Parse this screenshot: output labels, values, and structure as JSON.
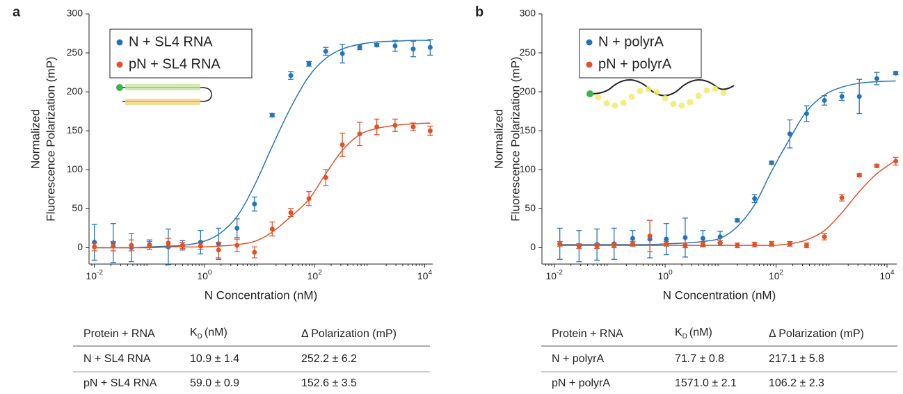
{
  "chart_data": [
    {
      "type": "scatter",
      "panel_label": "a",
      "xlabel": "N Concentration (nM)",
      "ylabel": [
        "Normalized",
        "Fluorescence Polarization (mP)"
      ],
      "xscale": "log",
      "xlim": [
        0.008,
        14000
      ],
      "ylim": [
        -21,
        300
      ],
      "xticks": [
        {
          "value": 0.01,
          "label": "10",
          "exponent": "-2"
        },
        {
          "value": 1,
          "label": "10",
          "exponent": "0"
        },
        {
          "value": 100,
          "label": "10",
          "exponent": "2"
        },
        {
          "value": 10000,
          "label": "10",
          "exponent": "4"
        }
      ],
      "yticks": [
        0,
        50,
        100,
        150,
        200,
        250,
        300
      ],
      "legend": "upper left",
      "x": [
        0.01,
        0.022,
        0.047,
        0.1,
        0.22,
        0.4,
        0.85,
        1.8,
        3.9,
        8.1,
        17,
        37,
        79,
        160,
        320,
        660,
        1350,
        2900,
        6200,
        12600
      ],
      "series": [
        {
          "name": "N + SL4 RNA",
          "color": "#2474b9",
          "values": [
            7,
            6,
            0,
            4,
            1,
            3,
            7,
            5,
            25,
            56,
            170,
            221,
            236,
            252,
            249,
            257,
            260,
            259,
            255,
            257
          ],
          "errors": [
            23,
            25,
            18,
            6,
            23,
            6,
            15,
            20,
            12,
            9,
            2,
            5,
            3,
            5,
            12,
            3,
            2,
            7,
            10,
            10
          ],
          "fit_values": [
            0,
            0,
            0,
            1,
            2,
            3,
            7,
            17,
            40,
            80,
            130,
            180,
            220,
            243,
            255,
            261,
            264,
            265,
            266,
            266
          ]
        },
        {
          "name": "pN + SL4 RNA",
          "color": "#e0522a",
          "values": [
            1,
            2,
            3,
            3,
            6,
            3,
            2,
            -3,
            3,
            -6,
            24,
            45,
            63,
            90,
            132,
            146,
            155,
            157,
            155,
            150
          ],
          "errors": [
            5,
            6,
            7,
            5,
            6,
            4,
            4,
            10,
            8,
            7,
            9,
            5,
            9,
            10,
            15,
            15,
            10,
            8,
            5,
            6
          ],
          "fit_values": [
            0,
            0,
            0,
            0,
            1,
            1,
            1,
            2,
            4,
            8,
            20,
            40,
            62,
            95,
            125,
            145,
            153,
            157,
            159,
            160
          ]
        }
      ],
      "table": {
        "header": [
          "Protein + RNA",
          {
            "symbol": "K",
            "subscript": "D",
            "unit": "(nM)"
          },
          "Δ Polarization (mP)"
        ],
        "rows": [
          [
            "N + SL4 RNA",
            "10.9 ± 1.4",
            "252.2 ± 6.2"
          ],
          [
            "pN + SL4 RNA",
            "59.0 ± 0.9",
            "152.6 ± 3.5"
          ]
        ]
      }
    },
    {
      "type": "scatter",
      "panel_label": "b",
      "xlabel": "N Concentration (nM)",
      "ylabel": [
        "Normalized",
        "Fluorescence Polarization (mP)"
      ],
      "xscale": "log",
      "xlim": [
        0.006,
        15000
      ],
      "ylim": [
        -21,
        300
      ],
      "xticks": [
        {
          "value": 0.01,
          "label": "10",
          "exponent": "-2"
        },
        {
          "value": 1,
          "label": "10",
          "exponent": "0"
        },
        {
          "value": 100,
          "label": "10",
          "exponent": "2"
        },
        {
          "value": 10000,
          "label": "10",
          "exponent": "4"
        }
      ],
      "yticks": [
        0,
        50,
        100,
        150,
        200,
        250,
        300
      ],
      "legend": "upper left",
      "x": [
        0.0126,
        0.028,
        0.059,
        0.12,
        0.26,
        0.53,
        1.05,
        2.3,
        4.8,
        9.8,
        20,
        41,
        83,
        177,
        355,
        745,
        1540,
        3170,
        6560,
        14400
      ],
      "series": [
        {
          "name": "N + polyrA",
          "color": "#2474b9",
          "values": [
            5,
            2,
            4,
            5,
            12,
            11,
            11,
            13,
            12,
            14,
            35,
            63,
            109,
            146,
            172,
            189,
            194,
            194,
            217,
            224
          ],
          "errors": [
            20,
            20,
            20,
            20,
            10,
            24,
            20,
            25,
            10,
            7,
            2,
            5,
            2,
            18,
            10,
            6,
            5,
            22,
            8,
            2
          ],
          "fit_values": [
            4,
            4,
            4,
            4,
            4,
            4,
            5,
            6,
            8,
            12,
            27,
            55,
            98,
            140,
            175,
            196,
            206,
            211,
            213,
            214
          ]
        },
        {
          "name": "pN + polyrA",
          "color": "#e0522a",
          "values": [
            5,
            2,
            2,
            3,
            5,
            15,
            5,
            3,
            4,
            6,
            3,
            4,
            5,
            5,
            3,
            14,
            64,
            93,
            105,
            111
          ],
          "errors": [
            3,
            3,
            3,
            3,
            3,
            20,
            3,
            3,
            3,
            3,
            3,
            3,
            3,
            3,
            3,
            4,
            4,
            2,
            2,
            5
          ],
          "fit_values": [
            3,
            3,
            3,
            3,
            3,
            3,
            3,
            3,
            3,
            3,
            3,
            3,
            3,
            5,
            10,
            22,
            45,
            72,
            95,
            112
          ]
        }
      ],
      "table": {
        "header": [
          "Protein + RNA",
          {
            "symbol": "K",
            "subscript": "D",
            "unit": "(nM)"
          },
          "Δ Polarization (mP)"
        ],
        "rows": [
          [
            "N + polyrA",
            "71.7 ± 0.8",
            "217.1 ± 5.8"
          ],
          [
            "pN + polyrA",
            "1571.0 ± 2.1",
            "106.2 ± 2.3"
          ]
        ]
      }
    }
  ]
}
